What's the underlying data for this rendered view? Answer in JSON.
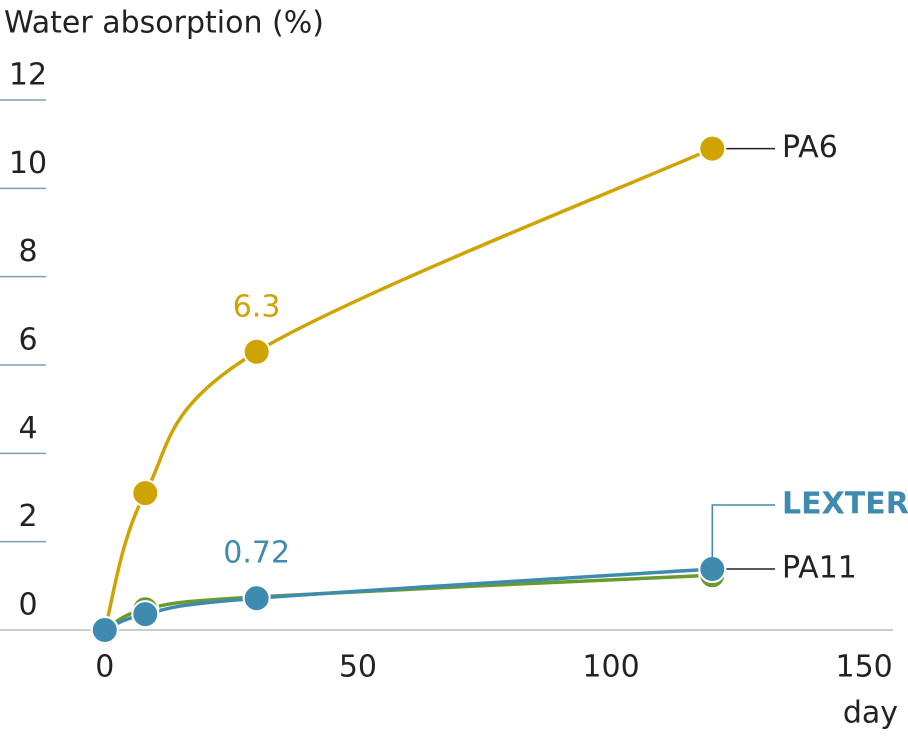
{
  "chart_data": {
    "type": "line",
    "y_label": "Water absorption (%)",
    "x_label": "day",
    "xlim": [
      -20.7,
      155.7
    ],
    "xticks": [
      0,
      50,
      100,
      150
    ],
    "ylim": [
      0,
      12
    ],
    "yticks": [
      0,
      2,
      4,
      6,
      8,
      10,
      12
    ],
    "grid": true,
    "series": [
      {
        "name": "PA6",
        "color": "#cfa300",
        "x": [
          0,
          8,
          30,
          120
        ],
        "values": [
          0,
          3.1,
          6.3,
          10.9
        ],
        "data_label_index": 2
      },
      {
        "name": "PA11",
        "color": "#6b9a2c",
        "x": [
          0,
          8,
          30,
          120
        ],
        "values": [
          0,
          0.47,
          0.75,
          1.24
        ]
      },
      {
        "name": "LEXTER",
        "color": "#3f8bb0",
        "x": [
          0,
          8,
          30,
          120
        ],
        "values": [
          0,
          0.36,
          0.72,
          1.38
        ],
        "data_label_index": 2
      }
    ]
  }
}
